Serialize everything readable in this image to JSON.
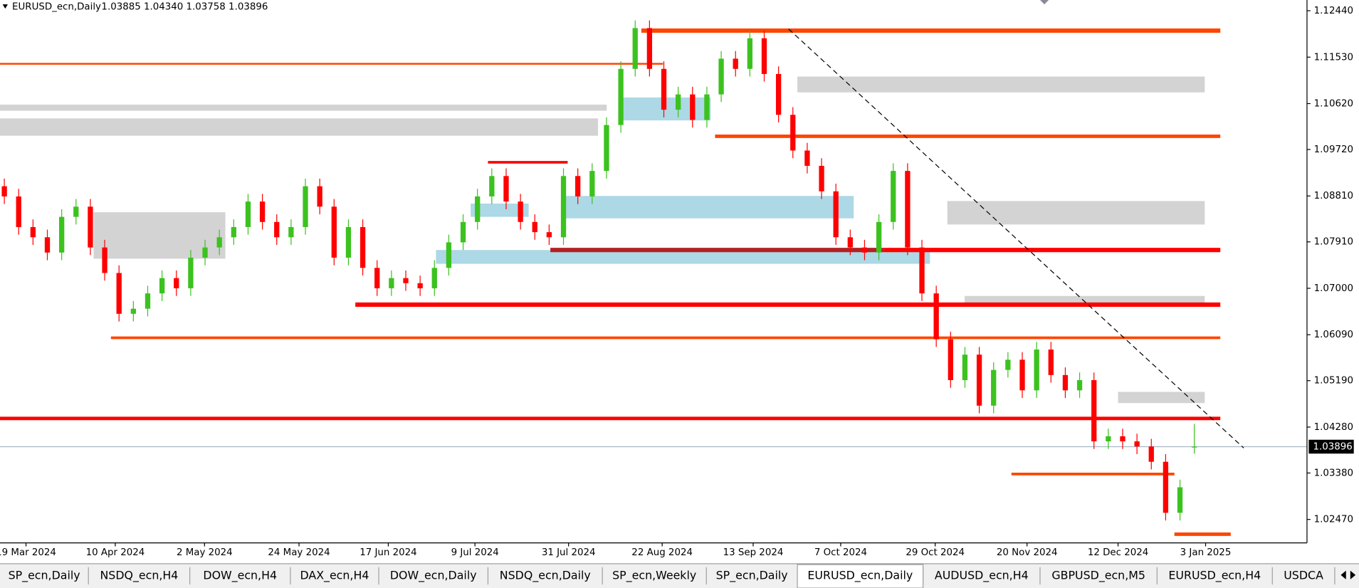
{
  "header": {
    "symbol": "EURUSD_ecn,Daily",
    "prices": "1.03885 1.04340 1.03758 1.03896"
  },
  "chart_data": {
    "type": "candlestick",
    "colors": {
      "up": "#3cc21f",
      "down": "#ff0000"
    },
    "candles": [
      [
        1.09,
        1.0915,
        1.0865,
        1.088
      ],
      [
        1.088,
        1.0895,
        1.0805,
        1.082
      ],
      [
        1.082,
        1.0835,
        1.0785,
        1.08
      ],
      [
        1.08,
        1.0815,
        1.0755,
        1.077
      ],
      [
        1.077,
        1.0855,
        1.0755,
        1.084
      ],
      [
        1.084,
        1.0875,
        1.0825,
        1.086
      ],
      [
        1.086,
        1.0875,
        1.0765,
        1.078
      ],
      [
        1.078,
        1.0795,
        1.0715,
        1.073
      ],
      [
        1.073,
        1.0745,
        1.0635,
        1.065
      ],
      [
        1.065,
        1.0675,
        1.0635,
        1.066
      ],
      [
        1.066,
        1.0705,
        1.0645,
        1.069
      ],
      [
        1.069,
        1.0735,
        1.0675,
        1.072
      ],
      [
        1.072,
        1.0735,
        1.0685,
        1.07
      ],
      [
        1.07,
        1.0775,
        1.0685,
        1.076
      ],
      [
        1.076,
        1.0795,
        1.0745,
        1.078
      ],
      [
        1.078,
        1.0815,
        1.0765,
        1.08
      ],
      [
        1.08,
        1.0835,
        1.0785,
        1.082
      ],
      [
        1.082,
        1.0885,
        1.0805,
        1.087
      ],
      [
        1.087,
        1.0885,
        1.0815,
        1.083
      ],
      [
        1.083,
        1.0845,
        1.0785,
        1.08
      ],
      [
        1.08,
        1.0835,
        1.0785,
        1.082
      ],
      [
        1.082,
        1.0915,
        1.0805,
        1.09
      ],
      [
        1.09,
        1.0915,
        1.0845,
        1.086
      ],
      [
        1.086,
        1.0875,
        1.0745,
        1.076
      ],
      [
        1.076,
        1.0835,
        1.0745,
        1.082
      ],
      [
        1.082,
        1.0835,
        1.0725,
        1.074
      ],
      [
        1.074,
        1.0755,
        1.0685,
        1.07
      ],
      [
        1.07,
        1.0735,
        1.0685,
        1.072
      ],
      [
        1.072,
        1.0735,
        1.0695,
        1.071
      ],
      [
        1.071,
        1.0725,
        1.0685,
        1.07
      ],
      [
        1.07,
        1.0755,
        1.0685,
        1.074
      ],
      [
        1.074,
        1.0805,
        1.0725,
        1.079
      ],
      [
        1.079,
        1.0845,
        1.0775,
        1.083
      ],
      [
        1.083,
        1.0895,
        1.0815,
        1.088
      ],
      [
        1.088,
        1.0935,
        1.0865,
        1.092
      ],
      [
        1.092,
        1.0935,
        1.0855,
        1.087
      ],
      [
        1.087,
        1.0885,
        1.0815,
        1.083
      ],
      [
        1.083,
        1.0845,
        1.0795,
        1.081
      ],
      [
        1.081,
        1.0825,
        1.0785,
        1.08
      ],
      [
        1.08,
        1.0935,
        1.0785,
        1.092
      ],
      [
        1.092,
        1.0935,
        1.0865,
        1.088
      ],
      [
        1.088,
        1.0945,
        1.0865,
        1.093
      ],
      [
        1.093,
        1.1035,
        1.0915,
        1.102
      ],
      [
        1.102,
        1.1145,
        1.1005,
        1.113
      ],
      [
        1.113,
        1.1225,
        1.1115,
        1.121
      ],
      [
        1.121,
        1.1225,
        1.1115,
        1.113
      ],
      [
        1.113,
        1.1145,
        1.1035,
        1.105
      ],
      [
        1.105,
        1.1095,
        1.1035,
        1.108
      ],
      [
        1.108,
        1.1095,
        1.1015,
        1.103
      ],
      [
        1.103,
        1.1095,
        1.1015,
        1.108
      ],
      [
        1.108,
        1.1165,
        1.1065,
        1.115
      ],
      [
        1.115,
        1.1165,
        1.1115,
        1.113
      ],
      [
        1.113,
        1.1205,
        1.1115,
        1.119
      ],
      [
        1.119,
        1.1205,
        1.1105,
        1.112
      ],
      [
        1.112,
        1.1135,
        1.1025,
        1.104
      ],
      [
        1.104,
        1.1055,
        1.0955,
        1.097
      ],
      [
        1.097,
        1.0985,
        1.0925,
        1.094
      ],
      [
        1.094,
        1.0955,
        1.0875,
        1.089
      ],
      [
        1.089,
        1.0905,
        1.0785,
        1.08
      ],
      [
        1.08,
        1.0815,
        1.0765,
        1.078
      ],
      [
        1.078,
        1.0795,
        1.0755,
        1.077
      ],
      [
        1.077,
        1.0845,
        1.0755,
        1.083
      ],
      [
        1.083,
        1.0945,
        1.0815,
        1.093
      ],
      [
        1.093,
        1.0945,
        1.0765,
        1.078
      ],
      [
        1.078,
        1.0795,
        1.0675,
        1.069
      ],
      [
        1.069,
        1.0705,
        1.0585,
        1.06
      ],
      [
        1.06,
        1.0615,
        1.0505,
        1.052
      ],
      [
        1.052,
        1.0585,
        1.0505,
        1.057
      ],
      [
        1.057,
        1.0585,
        1.0455,
        1.047
      ],
      [
        1.047,
        1.0555,
        1.0455,
        1.054
      ],
      [
        1.054,
        1.0575,
        1.0525,
        1.056
      ],
      [
        1.056,
        1.0575,
        1.0485,
        1.05
      ],
      [
        1.05,
        1.0595,
        1.0485,
        1.058
      ],
      [
        1.058,
        1.0595,
        1.0515,
        1.053
      ],
      [
        1.053,
        1.0545,
        1.0485,
        1.05
      ],
      [
        1.05,
        1.0535,
        1.0485,
        1.052
      ],
      [
        1.052,
        1.0535,
        1.0385,
        1.04
      ],
      [
        1.04,
        1.0425,
        1.0385,
        1.041
      ],
      [
        1.041,
        1.0425,
        1.0385,
        1.04
      ],
      [
        1.04,
        1.0415,
        1.0375,
        1.039
      ],
      [
        1.039,
        1.0405,
        1.0345,
        1.036
      ],
      [
        1.036,
        1.0375,
        1.0245,
        1.026
      ],
      [
        1.026,
        1.0325,
        1.0245,
        1.031
      ],
      [
        1.03885,
        1.0434,
        1.03758,
        1.03896
      ]
    ],
    "x_labels": [
      "19 Mar 2024",
      "10 Apr 2024",
      "2 May 2024",
      "24 May 2024",
      "17 Jun 2024",
      "9 Jul 2024",
      "31 Jul 2024",
      "22 Aug 2024",
      "13 Sep 2024",
      "7 Oct 2024",
      "29 Oct 2024",
      "20 Nov 2024",
      "12 Dec 2024",
      "3 Jan 2025"
    ],
    "ylim": [
      1.0201,
      1.1265
    ],
    "yticks": [
      {
        "value": 1.1244,
        "label": "1.12440"
      },
      {
        "value": 1.1153,
        "label": "1.11530"
      },
      {
        "value": 1.1062,
        "label": "1.10620"
      },
      {
        "value": 1.0972,
        "label": "1.09720"
      },
      {
        "value": 1.0881,
        "label": "1.08810"
      },
      {
        "value": 1.0791,
        "label": "1.07910"
      },
      {
        "value": 1.07,
        "label": "1.07000"
      },
      {
        "value": 1.0609,
        "label": "1.06090"
      },
      {
        "value": 1.0519,
        "label": "1.05190"
      },
      {
        "value": 1.0428,
        "label": "1.04280"
      },
      {
        "value": 1.0338,
        "label": "1.03380"
      },
      {
        "value": 1.0247,
        "label": "1.02470"
      }
    ],
    "last_price": {
      "value": 1.03896,
      "label": "1.03896"
    },
    "levels": [
      {
        "price": 1.1205,
        "color": "#ff4500"
      },
      {
        "price": 1.114,
        "color": "#ff4500"
      },
      {
        "price": 1.0998,
        "color": "#ff4500"
      },
      {
        "price": 1.0947,
        "color": "#ff0000"
      },
      {
        "price": 1.0775,
        "color": "#b22222"
      },
      {
        "price": 1.0775,
        "color": "#ff0000"
      },
      {
        "price": 1.0668,
        "color": "#ff0000"
      },
      {
        "price": 1.0603,
        "color": "#ff4500"
      },
      {
        "price": 1.0445,
        "color": "#ff0000"
      },
      {
        "price": 1.0336,
        "color": "#ff4500"
      },
      {
        "price": 1.0218,
        "color": "#ff4500"
      }
    ],
    "zones": [
      {
        "low": 1.1048,
        "high": 1.106,
        "color": "#d3d3d3"
      },
      {
        "low": 1.0999,
        "high": 1.1033,
        "color": "#d3d3d3"
      },
      {
        "low": 1.1084,
        "high": 1.1115,
        "color": "#d3d3d3"
      },
      {
        "low": 1.0825,
        "high": 1.0871,
        "color": "#d3d3d3"
      },
      {
        "low": 1.0758,
        "high": 1.0849,
        "color": "#d3d3d3"
      },
      {
        "low": 1.0668,
        "high": 1.0685,
        "color": "#d3d3d3"
      },
      {
        "low": 1.0475,
        "high": 1.0497,
        "color": "#d3d3d3"
      },
      {
        "low": 1.1029,
        "high": 1.1074,
        "color": "#add8e6"
      },
      {
        "low": 1.0837,
        "high": 1.0881,
        "color": "#add8e6"
      },
      {
        "low": 1.0748,
        "high": 1.0775,
        "color": "#add8e6"
      },
      {
        "low": 1.084,
        "high": 1.0866,
        "color": "#add8e6"
      }
    ],
    "trendline": [
      1.1208,
      1.0387
    ]
  },
  "tabs": {
    "items": [
      "SP_ecn,Daily",
      "NSDQ_ecn,H4",
      "DOW_ecn,H4",
      "DAX_ecn,H4",
      "DOW_ecn,Daily",
      "NSDQ_ecn,Daily",
      "SP_ecn,Weekly",
      "SP_ecn,Daily",
      "EURUSD_ecn,Daily",
      "AUDUSD_ecn,H4",
      "GBPUSD_ecn,M5",
      "EURUSD_ecn,H4",
      "USDCA"
    ],
    "active": 8
  }
}
